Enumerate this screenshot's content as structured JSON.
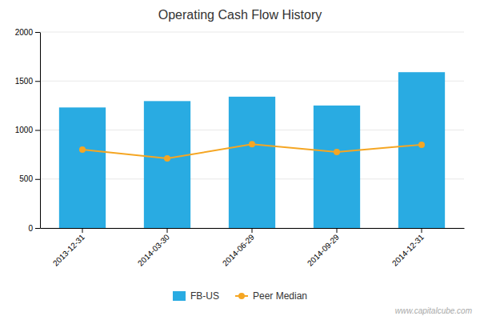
{
  "chart_data": {
    "type": "bar",
    "title": "Operating Cash Flow History",
    "categories": [
      "2013-12-31",
      "2014-03-30",
      "2014-06-29",
      "2014-09-29",
      "2014-12-31"
    ],
    "series": [
      {
        "name": "FB-US",
        "type": "bar",
        "color": "#29ABE2",
        "values": [
          1230,
          1295,
          1340,
          1250,
          1590
        ]
      },
      {
        "name": "Peer Median",
        "type": "line",
        "color": "#F5A623",
        "marker": "circle",
        "values": [
          800,
          710,
          855,
          775,
          850
        ]
      }
    ],
    "ylim": [
      0,
      2000
    ],
    "yticks": [
      0,
      500,
      1000,
      1500,
      2000
    ],
    "grid": true,
    "legend": "bottom",
    "annotations": [
      "www.capitalcube.com"
    ]
  }
}
